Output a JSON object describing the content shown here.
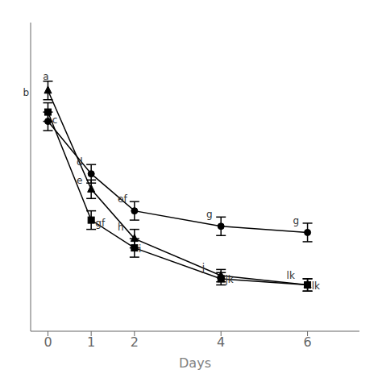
{
  "chart_data": {
    "type": "line",
    "xlabel": "Days",
    "x": [
      0,
      1,
      2,
      4,
      6
    ],
    "xlim": [
      -0.4,
      7.2
    ],
    "xticks": [
      0,
      1,
      2,
      4,
      6
    ],
    "ylim": [
      -8,
      92
    ],
    "tick_labels": "x",
    "grid": false,
    "series": [
      {
        "color": "black",
        "marker": "circle",
        "line_style": "solid",
        "values": [
          60,
          43,
          31,
          26,
          24
        ],
        "yerr": [
          3,
          3,
          3,
          3,
          3
        ]
      },
      {
        "color": "black",
        "marker": "triangle",
        "line_style": "solid",
        "values": [
          70,
          38,
          22,
          10,
          7
        ],
        "yerr": [
          3,
          3,
          3,
          2,
          2
        ]
      },
      {
        "color": "black",
        "marker": "square",
        "line_style": "solid",
        "values": [
          63,
          28,
          19,
          9,
          7
        ],
        "yerr": [
          3,
          3,
          3,
          2,
          2
        ]
      }
    ],
    "annotations": [
      {
        "text": "a",
        "x": 0,
        "y": 70
      },
      {
        "text": "b",
        "x": 0,
        "y": 70
      },
      {
        "text": "c",
        "x": 0,
        "y": 60
      },
      {
        "text": "d",
        "x": 1,
        "y": 43
      },
      {
        "text": "e",
        "x": 1,
        "y": 38
      },
      {
        "text": "gf",
        "x": 1,
        "y": 28
      },
      {
        "text": "ef",
        "x": 2,
        "y": 31
      },
      {
        "text": "h",
        "x": 2,
        "y": 22
      },
      {
        "text": "i",
        "x": 2,
        "y": 19
      },
      {
        "text": "g",
        "x": 4,
        "y": 26
      },
      {
        "text": "j",
        "x": 4,
        "y": 10
      },
      {
        "text": "jk",
        "x": 4,
        "y": 9
      },
      {
        "text": "g",
        "x": 6,
        "y": 24
      },
      {
        "text": "lk",
        "x": 6,
        "y": 7
      },
      {
        "text": "lk",
        "x": 6,
        "y": 7
      }
    ]
  }
}
